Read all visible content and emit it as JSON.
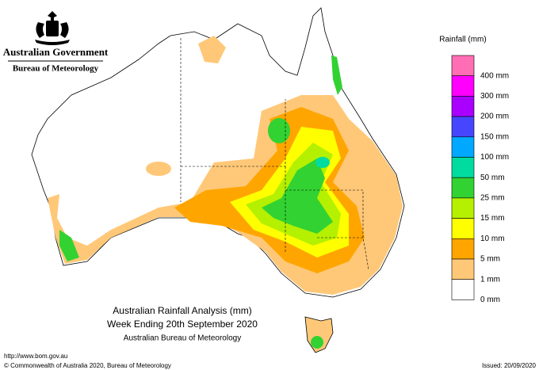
{
  "header": {
    "government": "Australian Government",
    "agency": "Bureau of Meteorology"
  },
  "title": {
    "line1": "Australian Rainfall Analysis (mm)",
    "line2": "Week Ending 20th September 2020",
    "line3": "Australian Bureau of Meteorology"
  },
  "legend": {
    "title": "Rainfall (mm)",
    "items": [
      {
        "label": "400 mm",
        "color": "#ff6eb4"
      },
      {
        "label": "300 mm",
        "color": "#ff00ff"
      },
      {
        "label": "200 mm",
        "color": "#aa00ff"
      },
      {
        "label": "150 mm",
        "color": "#4646ff"
      },
      {
        "label": "100 mm",
        "color": "#00a8ff"
      },
      {
        "label": "50 mm",
        "color": "#00dca0"
      },
      {
        "label": "25 mm",
        "color": "#32d232"
      },
      {
        "label": "15 mm",
        "color": "#b4f000"
      },
      {
        "label": "10 mm",
        "color": "#ffff00"
      },
      {
        "label": "5 mm",
        "color": "#ffa500"
      },
      {
        "label": "1 mm",
        "color": "#ffc878"
      },
      {
        "label": "0 mm",
        "color": "#ffffff"
      }
    ]
  },
  "footer": {
    "url": "http://www.bom.gov.au",
    "copyright": "© Commonwealth of Australia 2020, Bureau of Meteorology",
    "issued": "Issued: 20/09/2020"
  }
}
